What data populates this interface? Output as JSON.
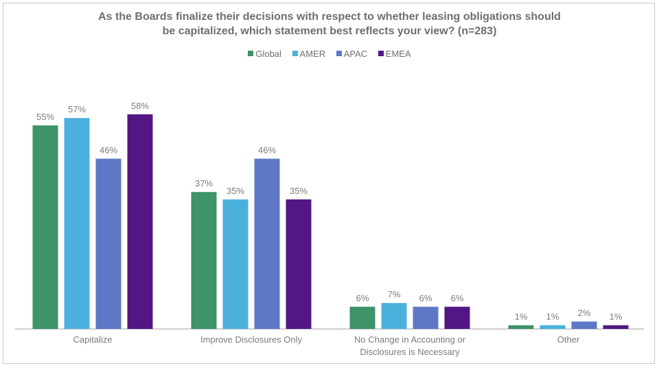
{
  "chart_data": {
    "type": "bar",
    "title_line1": "As the Boards finalize their decisions with respect to whether leasing obligations should",
    "title_line2": "be capitalized, which statement best reflects your view? (n=283)",
    "categories": [
      [
        "Capitalize"
      ],
      [
        "Improve Disclosures Only"
      ],
      [
        "No Change in Accounting or",
        "Disclosures is Necessary"
      ],
      [
        "Other"
      ]
    ],
    "series": [
      {
        "name": "Global",
        "color": "#3f9368",
        "values": [
          55,
          37,
          6,
          1
        ]
      },
      {
        "name": "AMER",
        "color": "#4bb1dc",
        "values": [
          57,
          35,
          7,
          1
        ]
      },
      {
        "name": "APAC",
        "color": "#5f78c5",
        "values": [
          46,
          46,
          6,
          2
        ]
      },
      {
        "name": "EMEA",
        "color": "#521784",
        "values": [
          58,
          35,
          6,
          1
        ]
      }
    ],
    "value_suffix": "%",
    "ylim": [
      0,
      60
    ],
    "grid": false,
    "legend_position": "top"
  }
}
